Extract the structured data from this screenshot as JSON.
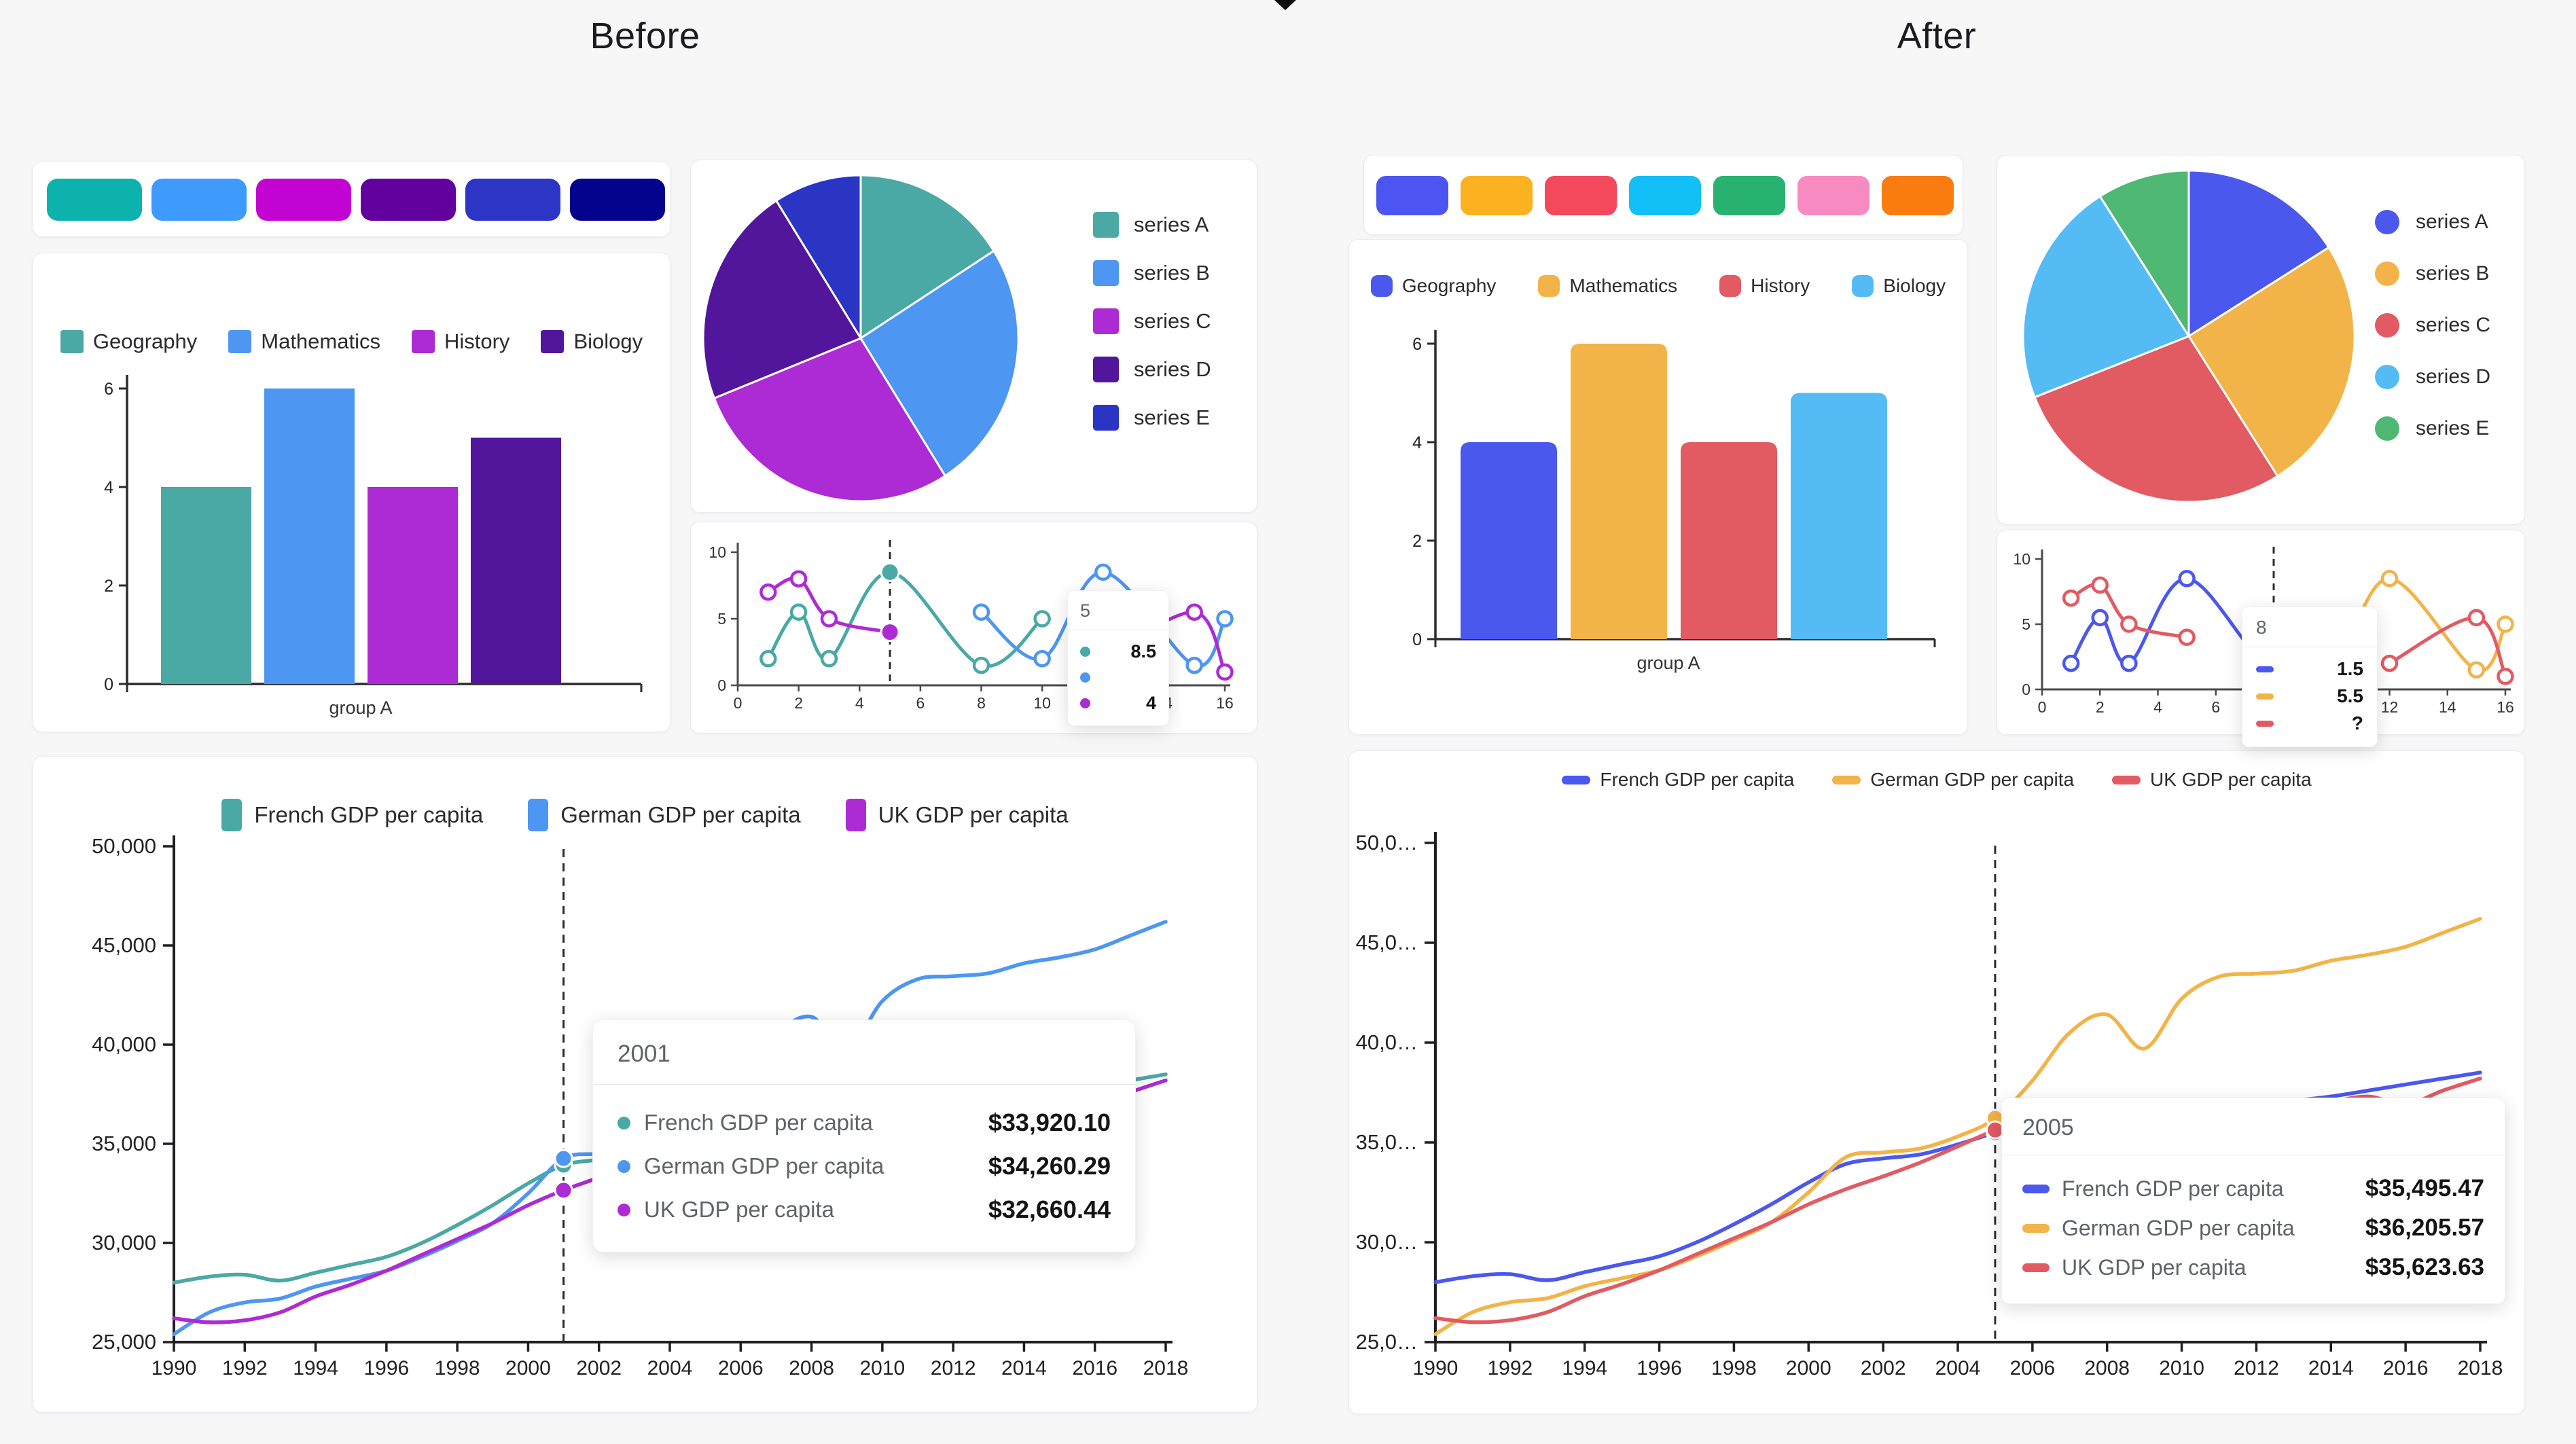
{
  "page": {
    "before_title": "Before",
    "after_title": "After"
  },
  "palette_before": {
    "colors": [
      "#0CB2AB",
      "#3E9AFC",
      "#C303D1",
      "#63019F",
      "#2C35C5",
      "#03038D"
    ]
  },
  "palette_after": {
    "colors": [
      "#4C55F2",
      "#FCB120",
      "#F4485C",
      "#12BFF7",
      "#27B26F",
      "#F78AC1",
      "#F97C10"
    ]
  },
  "chart_data": [
    {
      "id": "bar",
      "type": "bar",
      "categories": [
        "group A"
      ],
      "series": [
        {
          "name": "Geography",
          "values": [
            4
          ]
        },
        {
          "name": "Mathematics",
          "values": [
            6
          ]
        },
        {
          "name": "History",
          "values": [
            4
          ]
        },
        {
          "name": "Biology",
          "values": [
            5
          ]
        }
      ],
      "xlabel": "group A",
      "ylim": [
        0,
        6
      ],
      "y_ticks": [
        0,
        2,
        4,
        6
      ],
      "legend_position": "top",
      "colors_before": [
        "#4AA8A5",
        "#4D96F2",
        "#AD2BD4",
        "#51169B"
      ],
      "colors_after": [
        "#4A58EE",
        "#F2B348",
        "#E25A62",
        "#54BBF5"
      ]
    },
    {
      "id": "pie",
      "type": "pie",
      "labels": [
        "series A",
        "series B",
        "series C",
        "series D",
        "series E"
      ],
      "values": [
        16,
        25,
        28,
        22,
        9
      ],
      "legend_position": "right",
      "colors_before": [
        "#4AA8A5",
        "#4D96F2",
        "#AD2BD4",
        "#51169B",
        "#2B35C4"
      ],
      "colors_after": [
        "#4A58EE",
        "#F2B348",
        "#E25A62",
        "#54BBF5",
        "#4FB873"
      ]
    },
    {
      "id": "mini_line",
      "type": "line",
      "xlim": [
        0,
        16
      ],
      "ylim": [
        0,
        10
      ],
      "x_ticks": [
        0,
        2,
        4,
        6,
        8,
        10,
        12,
        14,
        16
      ],
      "y_ticks": [
        0,
        5,
        10
      ],
      "series": [
        {
          "segments": [
            [
              [
                1,
                2
              ],
              [
                2,
                5.5
              ],
              [
                3,
                2
              ],
              [
                5,
                8.5
              ],
              [
                8,
                1.5
              ],
              [
                10,
                5
              ]
            ]
          ]
        },
        {
          "segments": [
            [
              [
                8,
                5.5
              ],
              [
                10,
                2
              ],
              [
                12,
                8.5
              ],
              [
                15,
                1.5
              ],
              [
                16,
                5
              ]
            ]
          ]
        },
        {
          "segments": [
            [
              [
                1,
                7
              ],
              [
                2,
                8
              ],
              [
                3,
                5
              ],
              [
                5,
                4
              ]
            ],
            [
              [
                12,
                2
              ],
              [
                15,
                5.5
              ],
              [
                16,
                1
              ]
            ]
          ]
        }
      ],
      "colors_before": [
        "#4AA8A5",
        "#4D96F2",
        "#AD2BD4"
      ],
      "colors_after": [
        "#4A58EE",
        "#F2B348",
        "#E25A62"
      ],
      "before_tooltip": {
        "header": "5",
        "marker_x": 5,
        "values": [
          "8.5",
          "",
          "4"
        ]
      },
      "after_tooltip": {
        "header": "8",
        "marker_x": 8,
        "values": [
          "1.5",
          "5.5",
          "?"
        ]
      }
    },
    {
      "id": "gdp",
      "type": "line",
      "x_start": 1990,
      "x_end": 2018,
      "x_ticks": [
        1990,
        1992,
        1994,
        1996,
        1998,
        2000,
        2002,
        2004,
        2006,
        2008,
        2010,
        2012,
        2014,
        2016,
        2018
      ],
      "ylim": [
        25000,
        50000
      ],
      "y_tick_labels_before": [
        "25,000",
        "30,000",
        "35,000",
        "40,000",
        "45,000",
        "50,000"
      ],
      "y_tick_labels_after": [
        "25,0…",
        "30,0…",
        "35,0…",
        "40,0…",
        "45,0…",
        "50,0…"
      ],
      "series": [
        {
          "name": "French GDP per capita",
          "values": [
            28000,
            28300,
            28400,
            28100,
            28500,
            28900,
            29300,
            30000,
            30900,
            31900,
            33000,
            33920.1,
            34200,
            34400,
            34900,
            35495.47,
            36100,
            36600,
            36700,
            35900,
            36500,
            36900,
            37000,
            37100,
            37300,
            37600,
            37900,
            38200,
            38500
          ]
        },
        {
          "name": "German GDP per capita",
          "values": [
            25400,
            26500,
            27000,
            27200,
            27800,
            28200,
            28600,
            29300,
            30100,
            31000,
            32500,
            34260.29,
            34500,
            34700,
            35300,
            36205.57,
            38100,
            40500,
            41400,
            39700,
            42200,
            43300,
            43450,
            43600,
            44100,
            44400,
            44800,
            45500,
            46200
          ]
        },
        {
          "name": "UK GDP per capita",
          "values": [
            26200,
            26000,
            26100,
            26500,
            27300,
            27900,
            28600,
            29400,
            30200,
            31000,
            31900,
            32660.44,
            33300,
            34000,
            34800,
            35623.63,
            36300,
            36800,
            36300,
            35200,
            35500,
            35800,
            36100,
            36500,
            37000,
            37300,
            36900,
            37600,
            38200
          ]
        }
      ],
      "colors_before": [
        "#4AA8A5",
        "#4D96F2",
        "#AD2BD4"
      ],
      "colors_after": [
        "#4A58EE",
        "#F2B348",
        "#E25A62"
      ],
      "before_tooltip": {
        "header": "2001",
        "year": 2001,
        "rows": [
          {
            "name": "French GDP per capita",
            "value": "$33,920.10"
          },
          {
            "name": "German GDP per capita",
            "value": "$34,260.29"
          },
          {
            "name": "UK GDP per capita",
            "value": "$32,660.44"
          }
        ]
      },
      "after_tooltip": {
        "header": "2005",
        "year": 2005,
        "rows": [
          {
            "name": "French GDP per capita",
            "value": "$35,495.47"
          },
          {
            "name": "German GDP per capita",
            "value": "$36,205.57"
          },
          {
            "name": "UK GDP per capita",
            "value": "$35,623.63"
          }
        ]
      }
    }
  ]
}
